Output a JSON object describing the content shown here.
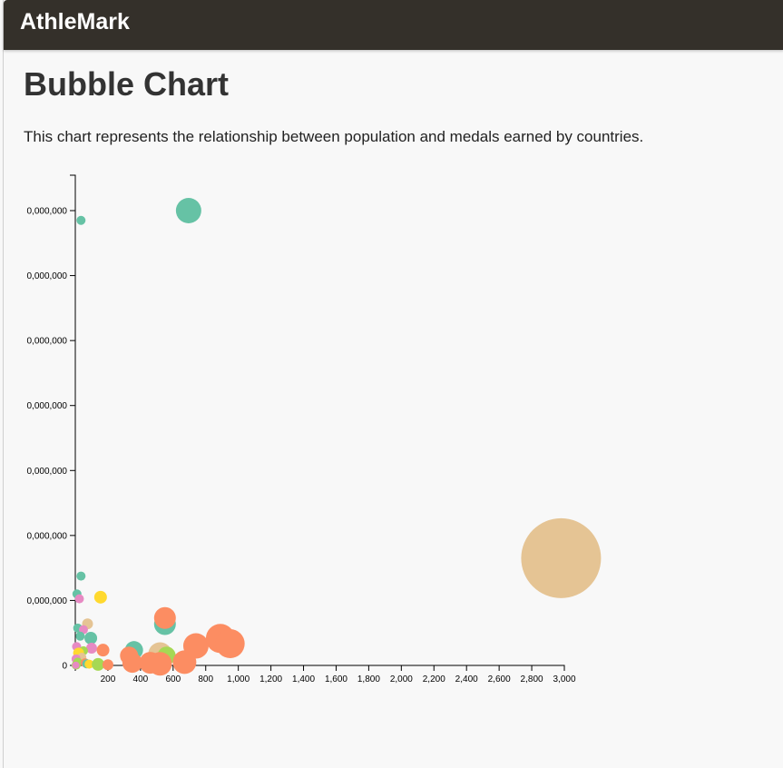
{
  "navbar": {
    "brand": "AthleMark"
  },
  "page": {
    "title": "Bubble Chart",
    "description": "This chart represents the relationship between population and medals earned by countries."
  },
  "chart_data": {
    "type": "scatter",
    "title": "",
    "xlabel": "",
    "ylabel": "",
    "xlim": [
      0,
      3000
    ],
    "ylim": [
      0,
      1400000000
    ],
    "xticks": [
      200,
      400,
      600,
      800,
      1000,
      1200,
      1400,
      1600,
      1800,
      2000,
      2200,
      2400,
      2600,
      2800,
      3000
    ],
    "xtick_labels": [
      "200",
      "400",
      "600",
      "800",
      "1,000",
      "1,200",
      "1,400",
      "1,600",
      "1,800",
      "2,000",
      "2,200",
      "2,400",
      "2,600",
      "2,800",
      "3,000"
    ],
    "yticks": [
      0,
      200000000,
      400000000,
      600000000,
      800000000,
      1000000000,
      1200000000,
      1400000000
    ],
    "ytick_labels": [
      "0",
      "0,000,000",
      "0,000,000",
      "0,000,000",
      "0,000,000",
      "0,000,000",
      "0,000,000",
      "0,000,000"
    ],
    "grid": false,
    "points": [
      {
        "x": 2980,
        "y": 330000000,
        "r": 44,
        "color": "#e5c494"
      },
      {
        "x": 695,
        "y": 1400000000,
        "r": 14,
        "color": "#66c2a5"
      },
      {
        "x": 35,
        "y": 1370000000,
        "r": 5,
        "color": "#66c2a5"
      },
      {
        "x": 35,
        "y": 275000000,
        "r": 5,
        "color": "#66c2a5"
      },
      {
        "x": 10,
        "y": 220000000,
        "r": 5,
        "color": "#66c2a5"
      },
      {
        "x": 25,
        "y": 205000000,
        "r": 5,
        "color": "#e78ac3"
      },
      {
        "x": 155,
        "y": 210000000,
        "r": 7,
        "color": "#ffd92f"
      },
      {
        "x": 550,
        "y": 127000000,
        "r": 12,
        "color": "#66c2a5"
      },
      {
        "x": 550,
        "y": 146000000,
        "r": 12,
        "color": "#fc8d62"
      },
      {
        "x": 75,
        "y": 128000000,
        "r": 6,
        "color": "#e5c494"
      },
      {
        "x": 15,
        "y": 115000000,
        "r": 5,
        "color": "#66c2a5"
      },
      {
        "x": 50,
        "y": 110000000,
        "r": 5,
        "color": "#e78ac3"
      },
      {
        "x": 30,
        "y": 90000000,
        "r": 5,
        "color": "#66c2a5"
      },
      {
        "x": 95,
        "y": 84000000,
        "r": 7,
        "color": "#66c2a5"
      },
      {
        "x": 8,
        "y": 58000000,
        "r": 5,
        "color": "#e78ac3"
      },
      {
        "x": 100,
        "y": 53000000,
        "r": 6,
        "color": "#e78ac3"
      },
      {
        "x": 170,
        "y": 47000000,
        "r": 7,
        "color": "#fc8d62"
      },
      {
        "x": 360,
        "y": 47000000,
        "r": 10,
        "color": "#66c2a5"
      },
      {
        "x": 50,
        "y": 45000000,
        "r": 5,
        "color": "#a6d854"
      },
      {
        "x": 20,
        "y": 38000000,
        "r": 6,
        "color": "#ffd92f"
      },
      {
        "x": 40,
        "y": 25000000,
        "r": 5,
        "color": "#e5c494"
      },
      {
        "x": 5,
        "y": 20000000,
        "r": 5,
        "color": "#e78ac3"
      },
      {
        "x": 15,
        "y": 10000000,
        "r": 5,
        "color": "#a6d854"
      },
      {
        "x": 60,
        "y": 8000000,
        "r": 5,
        "color": "#fc8d62"
      },
      {
        "x": 70,
        "y": 5000000,
        "r": 5,
        "color": "#66c2a5"
      },
      {
        "x": 85,
        "y": 4000000,
        "r": 5,
        "color": "#ffd92f"
      },
      {
        "x": 140,
        "y": 3000000,
        "r": 7,
        "color": "#a6d854"
      },
      {
        "x": 200,
        "y": 2000000,
        "r": 6,
        "color": "#fc8d62"
      },
      {
        "x": 5,
        "y": 1000000,
        "r": 5,
        "color": "#a6d854"
      },
      {
        "x": 3,
        "y": 500000,
        "r": 4,
        "color": "#e78ac3"
      },
      {
        "x": 520,
        "y": 35000000,
        "r": 13,
        "color": "#e5c494"
      },
      {
        "x": 560,
        "y": 30000000,
        "r": 10,
        "color": "#a6d854"
      },
      {
        "x": 330,
        "y": 30000000,
        "r": 10,
        "color": "#fc8d62"
      },
      {
        "x": 350,
        "y": 8000000,
        "r": 11,
        "color": "#fc8d62"
      },
      {
        "x": 460,
        "y": 8000000,
        "r": 12,
        "color": "#fc8d62"
      },
      {
        "x": 520,
        "y": 5000000,
        "r": 13,
        "color": "#fc8d62"
      },
      {
        "x": 670,
        "y": 10000000,
        "r": 13,
        "color": "#fc8d62"
      },
      {
        "x": 740,
        "y": 60000000,
        "r": 14,
        "color": "#fc8d62"
      },
      {
        "x": 890,
        "y": 83000000,
        "r": 16,
        "color": "#fc8d62"
      },
      {
        "x": 950,
        "y": 67000000,
        "r": 16,
        "color": "#fc8d62"
      }
    ]
  }
}
